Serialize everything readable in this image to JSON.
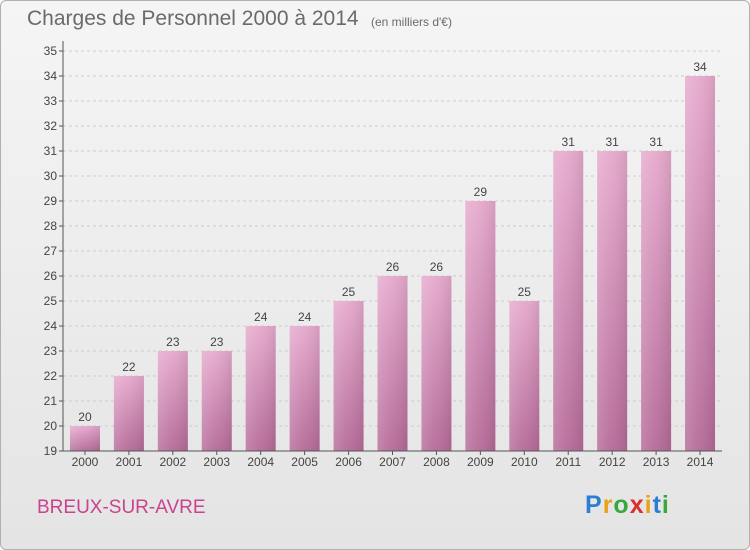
{
  "header": {
    "title": "Charges de Personnel 2000 à 2014",
    "subtitle": "(en milliers d'€)"
  },
  "footer": {
    "town": "BREUX-SUR-AVRE",
    "logo": {
      "letters": [
        "P",
        "r",
        "o",
        "x",
        "i",
        "t",
        "i"
      ],
      "colors": [
        "#2a7fd4",
        "#e8a21a",
        "#37a83d",
        "#d9302b",
        "#e8a21a",
        "#2a7fd4",
        "#37a83d"
      ]
    }
  },
  "chart_data": {
    "type": "bar",
    "title": "Charges de Personnel 2000 à 2014",
    "subtitle": "(en milliers d'€)",
    "categories": [
      "2000",
      "2001",
      "2002",
      "2003",
      "2004",
      "2005",
      "2006",
      "2007",
      "2008",
      "2009",
      "2010",
      "2011",
      "2012",
      "2013",
      "2014"
    ],
    "values": [
      20,
      22,
      23,
      23,
      24,
      24,
      25,
      26,
      26,
      29,
      25,
      31,
      31,
      31,
      34
    ],
    "ylim": [
      19,
      35
    ],
    "yticks": [
      19,
      20,
      21,
      22,
      23,
      24,
      25,
      26,
      27,
      28,
      29,
      30,
      31,
      32,
      33,
      34,
      35
    ],
    "grid": true,
    "data_labels": true,
    "bar_color": "#d98bb8",
    "axis_color": "#555555"
  }
}
